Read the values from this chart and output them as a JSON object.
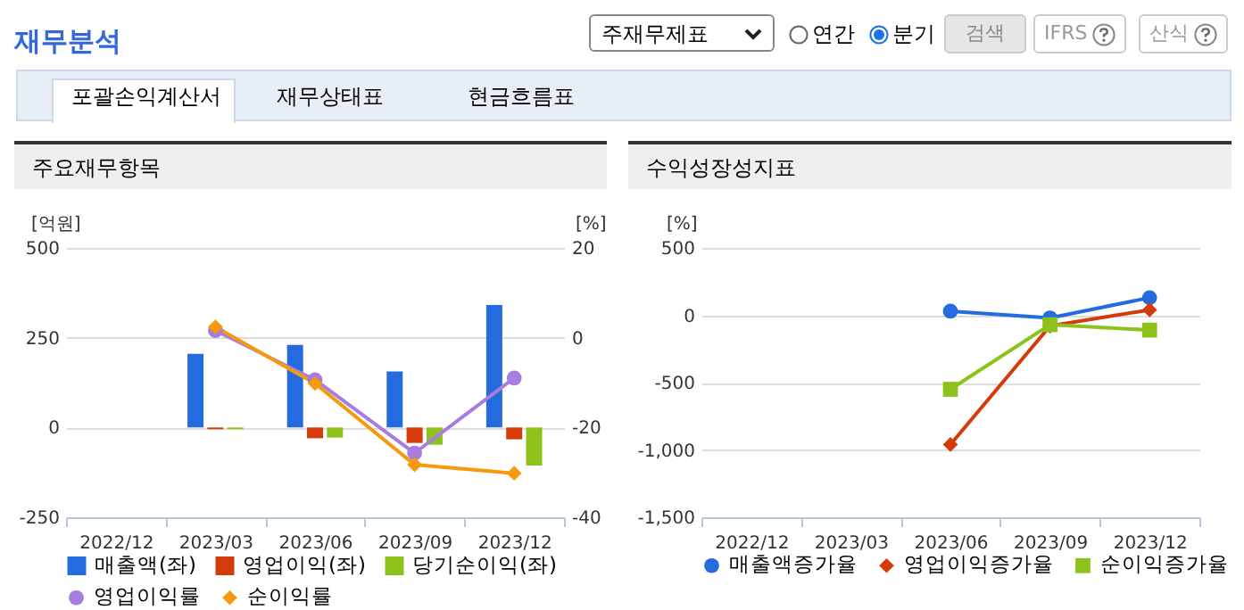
{
  "chart_data": [
    {
      "type": "other",
      "title": "재무분석",
      "annotations": [
        "주재무제표",
        "연간",
        "분기",
        "검색",
        "IFRS",
        "산식",
        "포괄손익계산서",
        "재무상태표",
        "현금흐름표"
      ]
    },
    {
      "type": "bar",
      "title": "주요재무항목",
      "categories": [
        "2022/12",
        "2023/03",
        "2023/06",
        "2023/09",
        "2023/12"
      ],
      "ylabel": "[억원]",
      "y2label": "[%]",
      "ylim": [
        -250,
        500
      ],
      "yticks": [
        -250,
        0,
        250,
        500
      ],
      "y2lim": [
        -40,
        20
      ],
      "y2ticks": [
        -40,
        -20,
        0,
        20
      ],
      "grid": "y",
      "legend": "bottom",
      "series": [
        {
          "name": "매출액(좌)",
          "color": "#246be0",
          "values": [
            null,
            205,
            230,
            156,
            341
          ]
        },
        {
          "name": "영업이익(좌)",
          "color": "#d43a0a",
          "values": [
            null,
            -5,
            -30,
            -43,
            -33
          ]
        },
        {
          "name": "당기순이익(좌)",
          "color": "#8cc21a",
          "values": [
            null,
            -5,
            -28,
            -48,
            -106
          ]
        },
        {
          "name": "영업이익률",
          "type": "line",
          "axis": "y2",
          "marker": "circle",
          "color": "#a77de0",
          "values": [
            null,
            1.6,
            -9.4,
            -25.7,
            -9.0
          ]
        },
        {
          "name": "순이익률",
          "type": "line",
          "axis": "y2",
          "marker": "diamond",
          "color": "#f59a0c",
          "values": [
            null,
            2.4,
            -10.2,
            -28.3,
            -30.2
          ]
        }
      ]
    },
    {
      "type": "line",
      "title": "수익성장성지표",
      "categories": [
        "2022/12",
        "2023/03",
        "2023/06",
        "2023/09",
        "2023/12"
      ],
      "ylabel": "[%]",
      "ylim": [
        -1500,
        500
      ],
      "yticks": [
        {
          "value": -1500,
          "label": "-1,500"
        },
        {
          "value": -1000,
          "label": "-1,000"
        },
        -500,
        0,
        500
      ],
      "grid": "y",
      "legend": "bottom",
      "series": [
        {
          "name": "매출액증가율",
          "marker": "circle",
          "color": "#246be0",
          "values": [
            null,
            null,
            30,
            -20,
            130
          ]
        },
        {
          "name": "영업이익증가율",
          "marker": "diamond",
          "color": "#d43a0a",
          "values": [
            null,
            null,
            -960,
            -80,
            40
          ]
        },
        {
          "name": "순이익증가율",
          "marker": "square",
          "color": "#8cc21a",
          "values": [
            null,
            null,
            -550,
            -70,
            -110
          ]
        }
      ]
    }
  ]
}
